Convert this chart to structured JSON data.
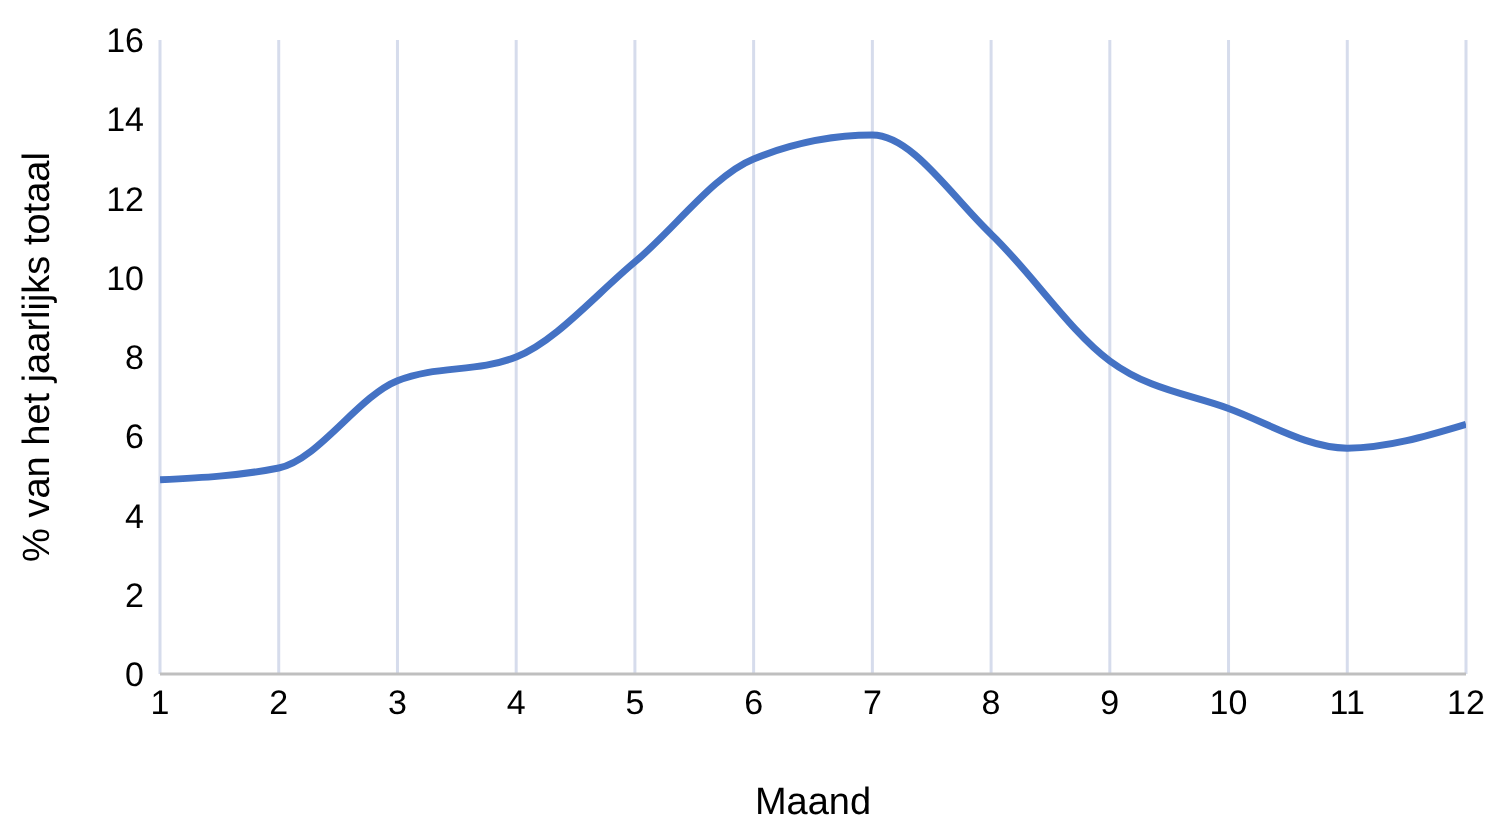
{
  "chart_data": {
    "type": "line",
    "xlabel": "Maand",
    "ylabel": "% van het jaarlijks totaal",
    "x": [
      1,
      2,
      3,
      4,
      5,
      6,
      7,
      8,
      9,
      10,
      11,
      12
    ],
    "series": [
      {
        "color": "#4472c4",
        "values": [
          4.9,
          5.2,
          7.4,
          8.0,
          10.4,
          13.0,
          13.6,
          11.1,
          7.9,
          6.7,
          5.7,
          6.3
        ]
      }
    ],
    "xlim": [
      1,
      12
    ],
    "xticks": [
      1,
      2,
      3,
      4,
      5,
      6,
      7,
      8,
      9,
      10,
      11,
      12
    ],
    "ylim": [
      0,
      16
    ],
    "yticks": [
      0,
      2,
      4,
      6,
      8,
      10,
      12,
      14,
      16
    ],
    "grid": "x",
    "legend": false,
    "marker": "none",
    "line_style": "solid"
  }
}
